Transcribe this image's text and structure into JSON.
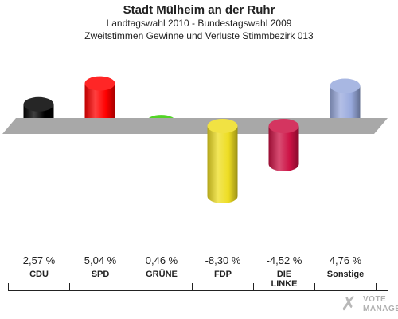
{
  "header": {
    "title": "Stadt Mülheim an der Ruhr",
    "subtitle1": "Landtagswahl 2010 - Bundestagswahl 2009",
    "subtitle2": "Zweitstimmen Gewinne und Verluste Stimmbezirk 013"
  },
  "chart_data": {
    "type": "bar",
    "categories": [
      "CDU",
      "SPD",
      "GRÜNE",
      "FDP",
      "DIE LINKE",
      "Sonstige"
    ],
    "values": [
      2.57,
      5.04,
      0.46,
      -8.3,
      -4.52,
      4.76
    ],
    "value_labels": [
      "2,57 %",
      "5,04 %",
      "0,46 %",
      "-8,30 %",
      "-4,52 %",
      "4,76 %"
    ],
    "category_labels": [
      "CDU",
      "SPD",
      "GRÜNE",
      "FDP",
      "DIE\nLINKE",
      "Sonstige"
    ],
    "colors": [
      "#000000",
      "#ff0000",
      "#33cc00",
      "#eedd22",
      "#cc1144",
      "#99aadd"
    ],
    "zero_band_color": "#a8a8a8",
    "bar_style": "3d-cylinder"
  },
  "branding": {
    "logo_line1": "VOTE",
    "logo_line2": "MANAGER",
    "logo_icon": "checkmark-icon"
  }
}
